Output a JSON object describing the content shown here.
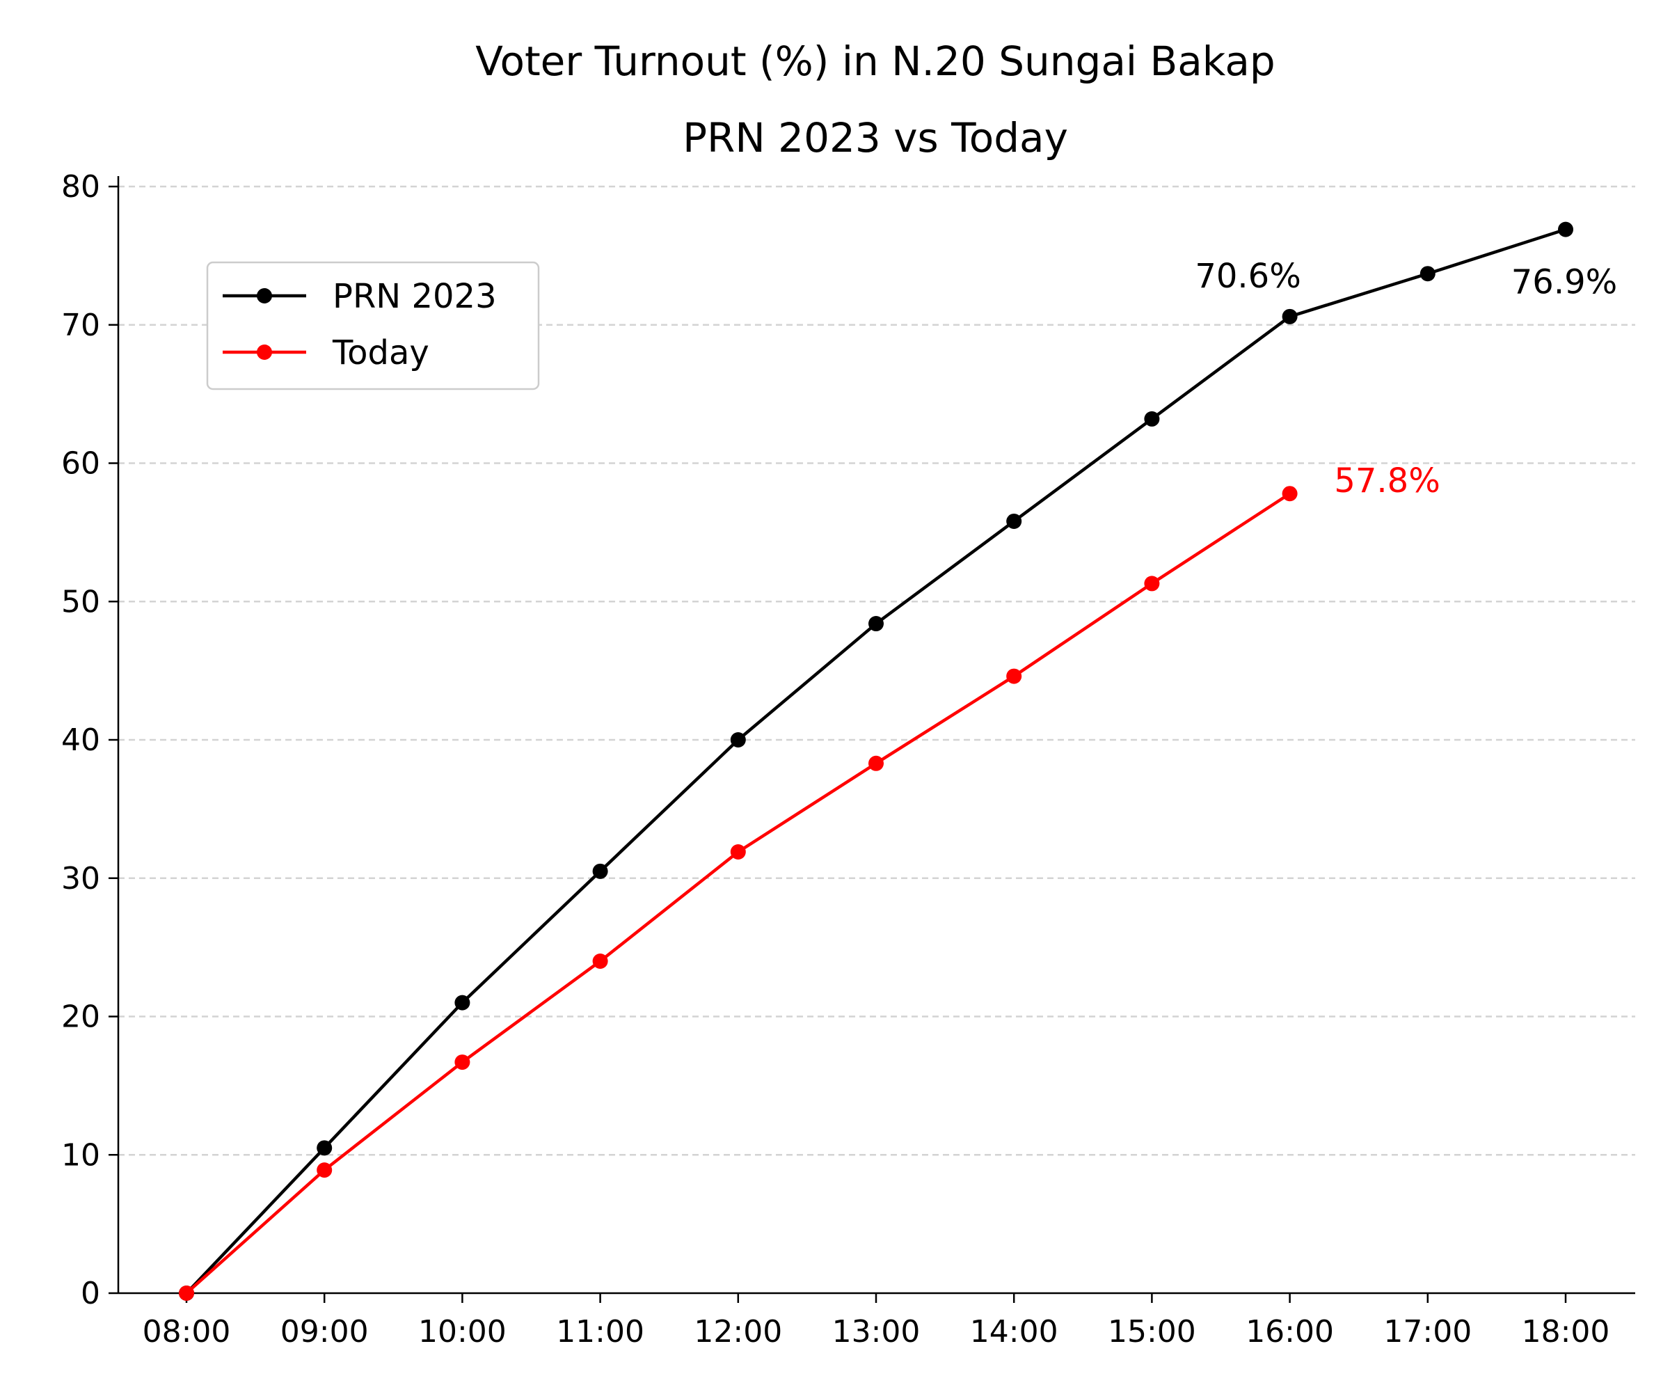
{
  "chart_data": {
    "type": "line",
    "title": "Voter Turnout (%) in N.20 Sungai Bakap",
    "subtitle": "PRN 2023 vs Today",
    "xlabel": "",
    "ylabel": "",
    "categories": [
      "08:00",
      "09:00",
      "10:00",
      "11:00",
      "12:00",
      "13:00",
      "14:00",
      "15:00",
      "16:00",
      "17:00",
      "18:00"
    ],
    "ylim": [
      0,
      80
    ],
    "yticks": [
      0,
      10,
      20,
      30,
      40,
      50,
      60,
      70,
      80
    ],
    "grid": "y-dashed",
    "legend_position": "upper-left",
    "series": [
      {
        "name": "PRN 2023",
        "color": "#000000",
        "values": [
          0,
          10.5,
          21.0,
          30.5,
          40.0,
          48.4,
          55.8,
          63.2,
          70.6,
          73.7,
          76.9
        ]
      },
      {
        "name": "Today",
        "color": "#ff0000",
        "values": [
          0,
          8.9,
          16.7,
          24.0,
          31.9,
          38.3,
          44.6,
          51.3,
          57.8,
          null,
          null
        ]
      }
    ],
    "annotations": [
      {
        "text": "70.6%",
        "series": 0,
        "index": 8,
        "color": "#000000"
      },
      {
        "text": "76.9%",
        "series": 0,
        "index": 10,
        "color": "#000000"
      },
      {
        "text": "57.8%",
        "series": 1,
        "index": 8,
        "color": "#ff0000"
      }
    ]
  }
}
